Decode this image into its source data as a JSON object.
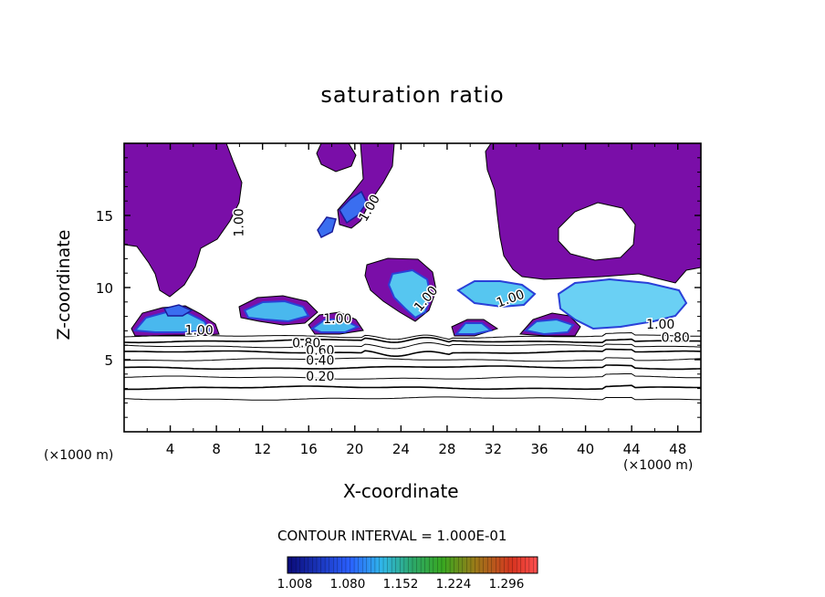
{
  "chart_data": {
    "type": "heatmap",
    "title": "saturation ratio",
    "xlabel": "X-coordinate",
    "ylabel": "Z-coordinate",
    "x_unit_left": "(×1000 m)",
    "x_unit_right": "(×1000 m)",
    "xlim": [
      0,
      50
    ],
    "ylim": [
      0,
      20
    ],
    "x_ticks": [
      4,
      8,
      12,
      16,
      20,
      24,
      28,
      32,
      36,
      40,
      44,
      48
    ],
    "y_ticks": [
      5,
      10,
      15
    ],
    "contour_interval_text": "CONTOUR INTERVAL = 1.000E-01",
    "contour_labels": [
      {
        "text": "1.00",
        "x": 10,
        "y": 14.5,
        "rot": -90
      },
      {
        "text": "1.00",
        "x": 21.3,
        "y": 15.5,
        "rot": -60
      },
      {
        "text": "1.00",
        "x": 6.5,
        "y": 7.0,
        "rot": 0
      },
      {
        "text": "1.00",
        "x": 18.5,
        "y": 7.8,
        "rot": 0
      },
      {
        "text": "1.00",
        "x": 26.2,
        "y": 9.2,
        "rot": -50
      },
      {
        "text": "1.00",
        "x": 46.5,
        "y": 7.4,
        "rot": 0
      },
      {
        "text": "1.00",
        "x": 33.5,
        "y": 9.2,
        "rot": -20
      },
      {
        "text": "0.80",
        "x": 15.8,
        "y": 6.1,
        "rot": 0
      },
      {
        "text": "0.80",
        "x": 47.8,
        "y": 6.5,
        "rot": 0
      },
      {
        "text": "0.60",
        "x": 17.0,
        "y": 5.6,
        "rot": 0
      },
      {
        "text": "0.40",
        "x": 17.0,
        "y": 4.9,
        "rot": 0
      },
      {
        "text": "0.20",
        "x": 17.0,
        "y": 3.8,
        "rot": 0
      }
    ],
    "contour_levels_y": [
      2.3,
      3.05,
      3.75,
      4.45,
      5.0,
      5.5,
      5.95,
      6.3,
      6.6
    ],
    "colorbar": {
      "ticks": [
        "1.008",
        "1.080",
        "1.152",
        "1.224",
        "1.296"
      ],
      "min_color": "#0a0a78",
      "max_color": "#ff2a10"
    },
    "colors": {
      "supersat_fill": "#7a0ea8",
      "low_cyan": "#49c6ee",
      "mid_blue": "#3b6df0",
      "deep_blue": "#121890"
    }
  }
}
